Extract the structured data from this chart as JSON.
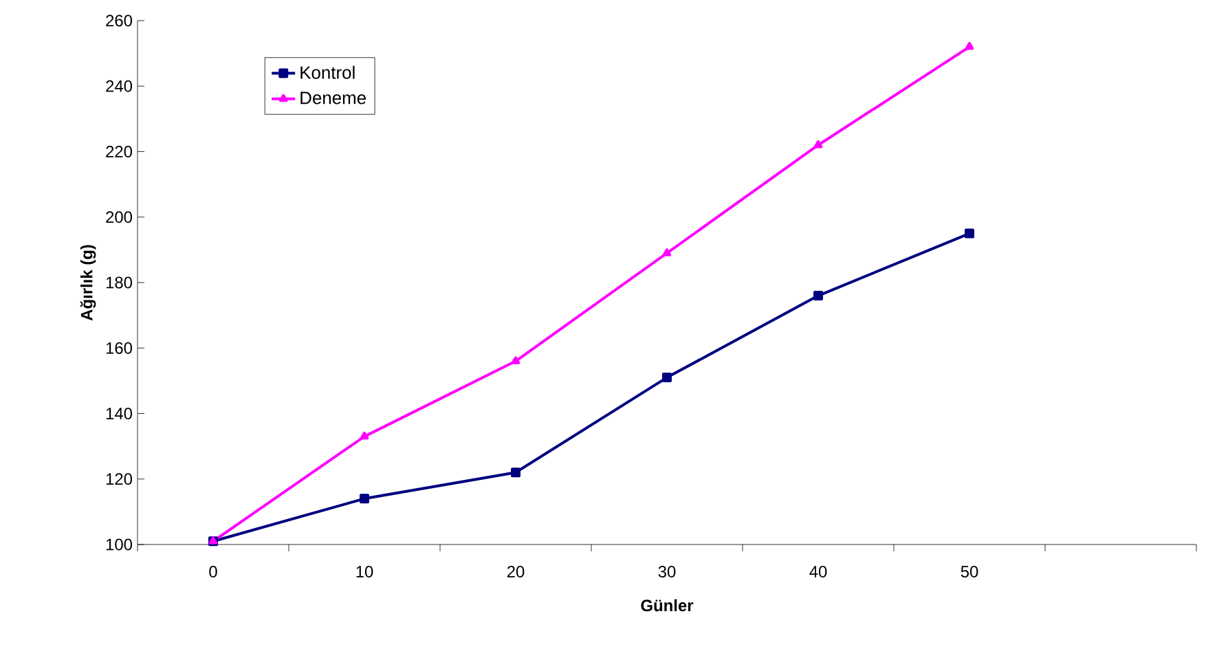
{
  "chart_data": {
    "type": "line",
    "xlabel": "Günler",
    "ylabel": "Ağırlık (g)",
    "x": [
      0,
      10,
      20,
      30,
      40,
      50
    ],
    "series": [
      {
        "name": "Kontrol",
        "color": "#000080",
        "marker": "square",
        "values": [
          101,
          114,
          122,
          151,
          176,
          195
        ]
      },
      {
        "name": "Deneme",
        "color": "#ff00ff",
        "marker": "triangle",
        "values": [
          101,
          133,
          156,
          189,
          222,
          252
        ]
      }
    ],
    "xlim": [
      -5,
      65
    ],
    "xticks": [
      0,
      10,
      20,
      30,
      40,
      50,
      {
        "value": -5,
        "label": null
      },
      {
        "value": 5,
        "label": null
      },
      {
        "value": 15,
        "label": null
      },
      {
        "value": 25,
        "label": null
      },
      {
        "value": 35,
        "label": null
      },
      {
        "value": 45,
        "label": null
      },
      {
        "value": 55,
        "label": null
      },
      {
        "value": 65,
        "label": null
      }
    ],
    "ylim": [
      100,
      260
    ],
    "yticks": [
      100,
      120,
      140,
      160,
      180,
      200,
      220,
      240,
      260
    ],
    "grid": false,
    "legend": "top left",
    "line_style": "solid"
  }
}
